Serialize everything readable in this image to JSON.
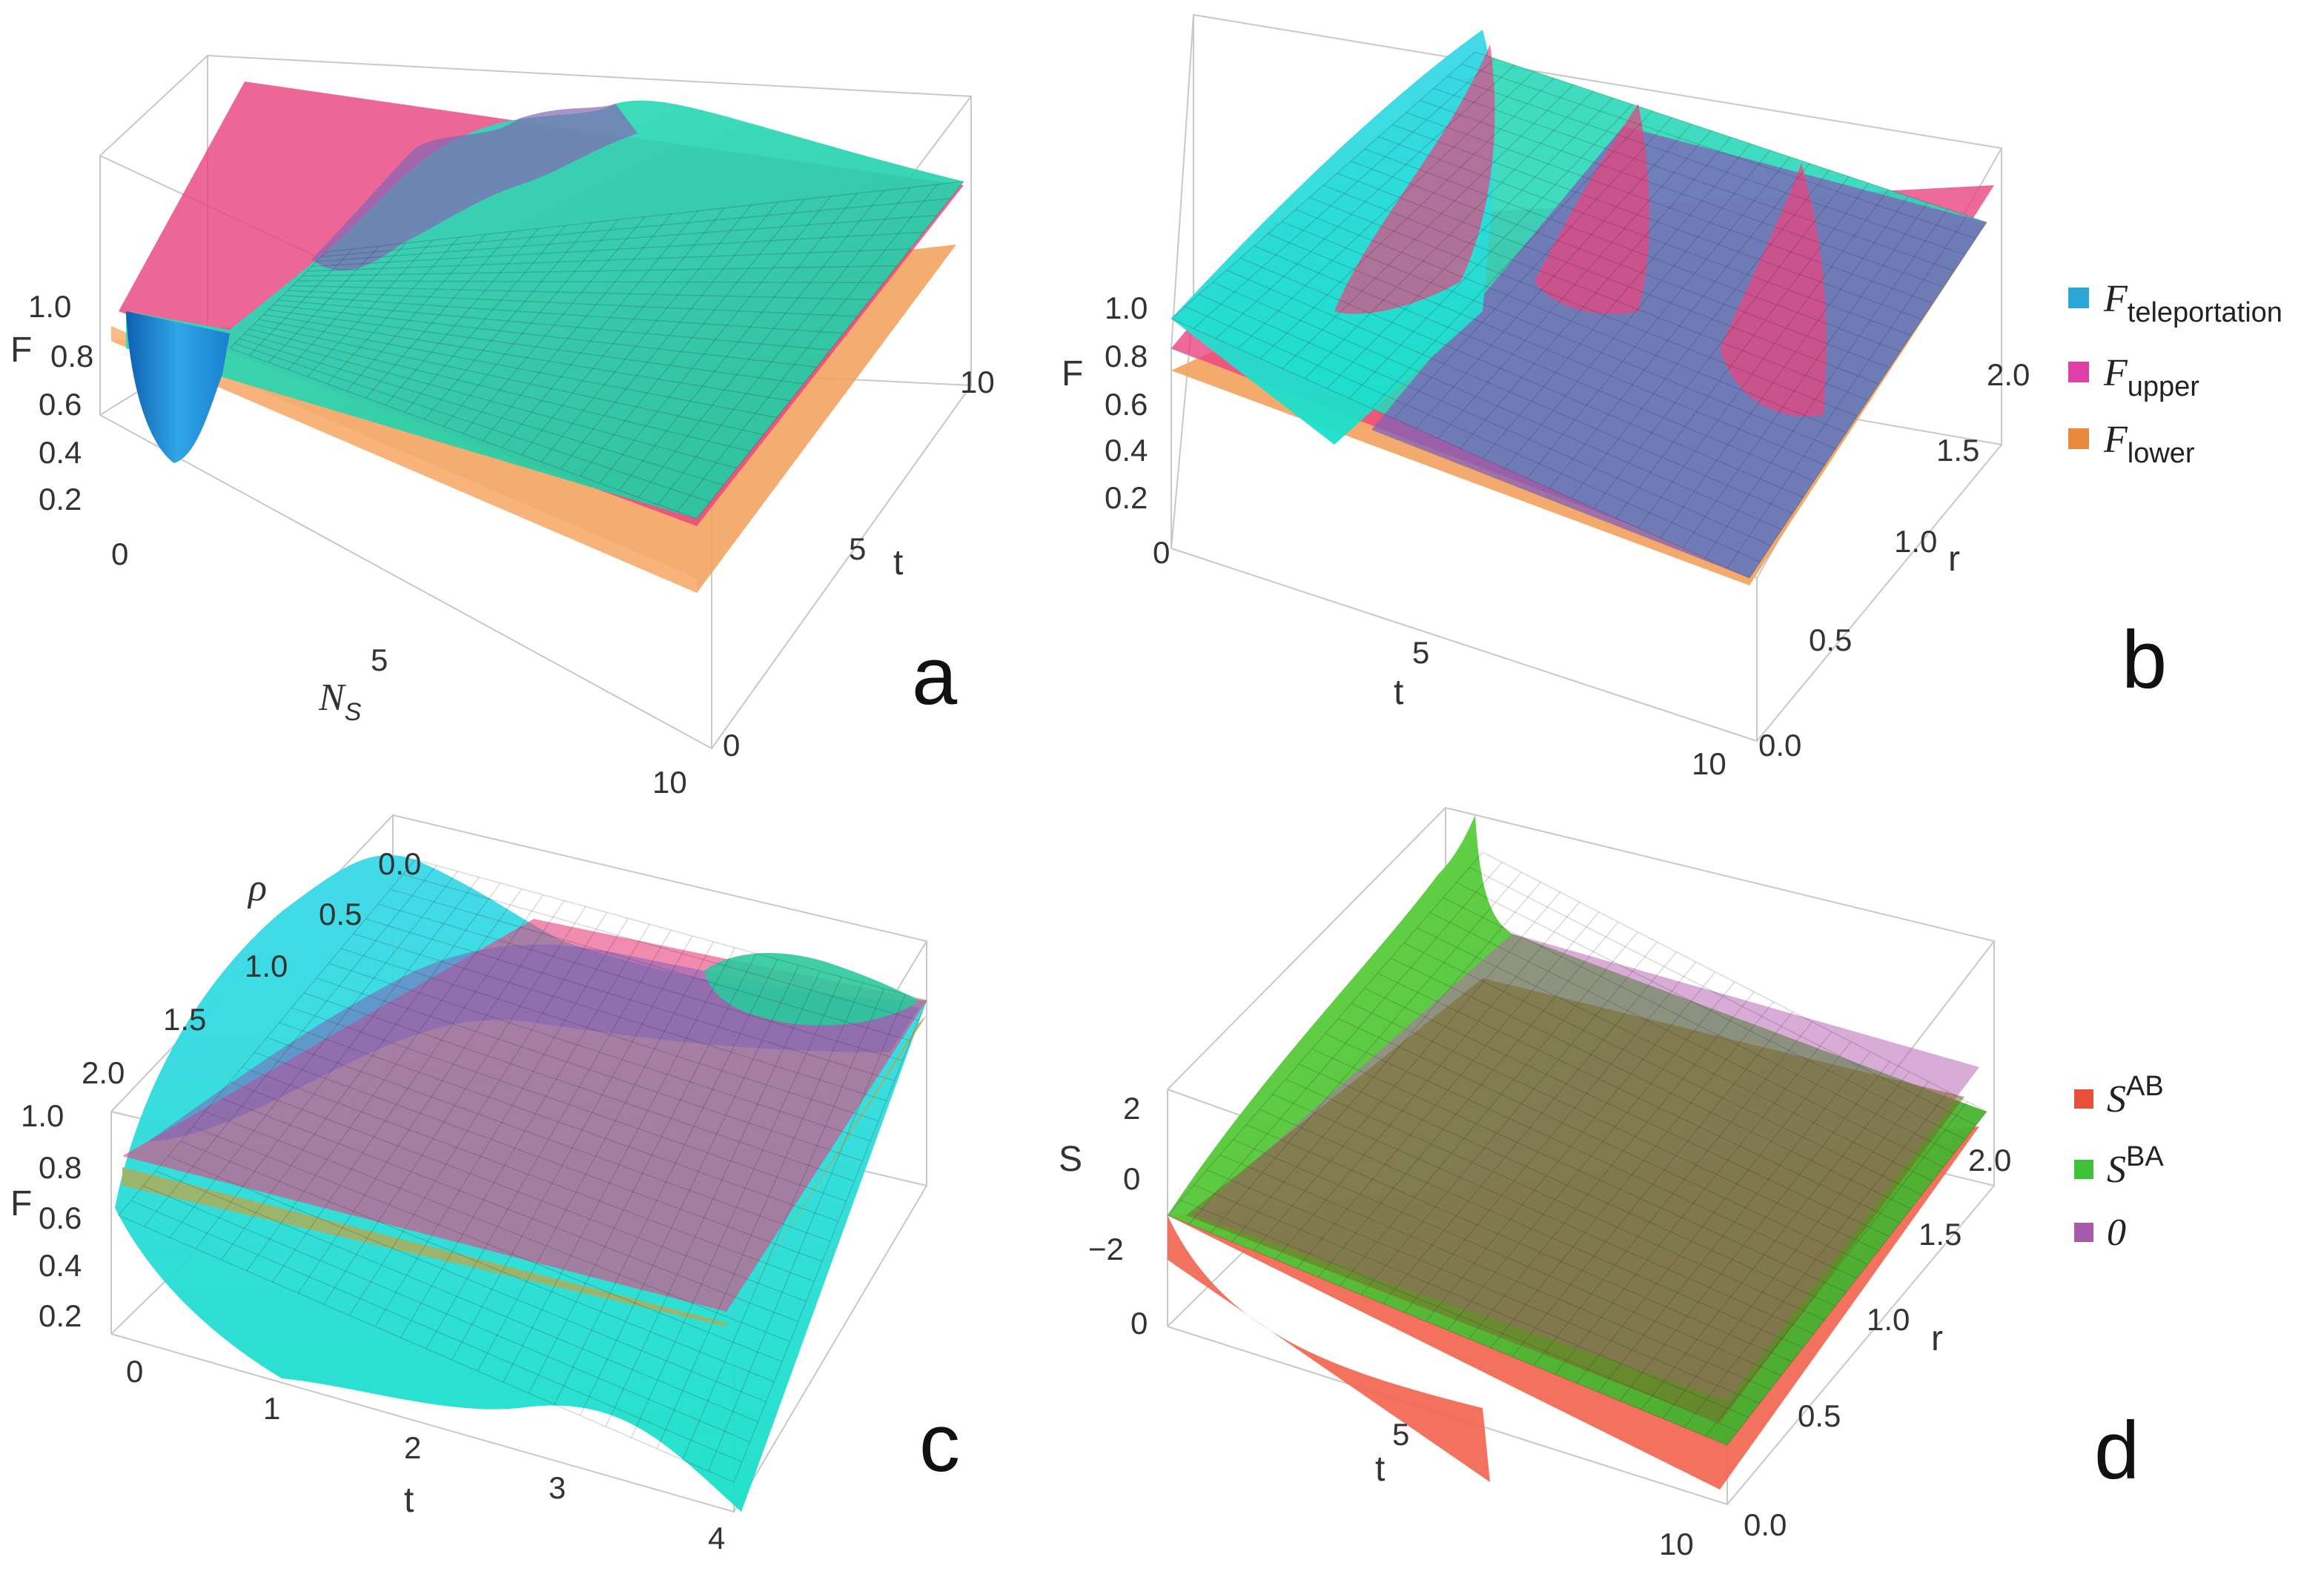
{
  "colors": {
    "teleportation": "#2ad8b8",
    "teleportation_dip": "#1a7fd0",
    "upper": "#e8447f",
    "lower": "#f2a15c",
    "S_AB": "#f26650",
    "S_BA": "#59c93a",
    "zero": "#b868b5"
  },
  "legend_top": {
    "items": [
      {
        "main": "F",
        "sub": "teleportation",
        "color": "#2aa7d8"
      },
      {
        "main": "F",
        "sub": "upper",
        "color": "#e03fa8"
      },
      {
        "main": "F",
        "sub": "lower",
        "color": "#e8893d"
      }
    ]
  },
  "legend_bottom": {
    "items": [
      {
        "main": "S",
        "sup": "AB",
        "color": "#e8503c"
      },
      {
        "main": "S",
        "sup": "BA",
        "color": "#3fc23a"
      },
      {
        "main": "0",
        "sup": "",
        "color": "#a55aaa"
      }
    ]
  },
  "chart_data": [
    {
      "panel": "a",
      "type": "surface3d",
      "zlabel": "F",
      "xlabel_main": "N",
      "xlabel_sub": "S",
      "ylabel": "t",
      "xlim": [
        0,
        10
      ],
      "ylim": [
        0,
        10
      ],
      "zlim": [
        0.1,
        1.0
      ],
      "xticks": [
        "0",
        "5",
        "10"
      ],
      "yticks": [
        "0",
        "5",
        "10"
      ],
      "zticks": [
        "1.0",
        "0.8",
        "0.6",
        "0.4",
        "0.2"
      ],
      "series": [
        {
          "name": "F teleportation",
          "min": 0.2,
          "max": 0.92
        },
        {
          "name": "F upper",
          "value_range": [
            0.75,
            0.9
          ]
        },
        {
          "name": "F lower",
          "value_range": [
            0.6,
            0.75
          ]
        }
      ]
    },
    {
      "panel": "b",
      "type": "surface3d",
      "zlabel": "F",
      "xlabel": "t",
      "ylabel": "r",
      "xlim": [
        0,
        10
      ],
      "ylim": [
        0.0,
        2.0
      ],
      "zlim": [
        0.1,
        1.0
      ],
      "xticks": [
        "0",
        "5",
        "10"
      ],
      "yticks": [
        "0.0",
        "0.5",
        "1.0",
        "1.5",
        "2.0"
      ],
      "zticks": [
        "1.0",
        "0.8",
        "0.6",
        "0.4",
        "0.2"
      ],
      "series": [
        {
          "name": "F teleportation",
          "value_range": [
            0.6,
            1.0
          ]
        },
        {
          "name": "F upper",
          "value_range": [
            0.8,
            0.9
          ]
        },
        {
          "name": "F lower",
          "value_range": [
            0.7,
            0.8
          ]
        }
      ]
    },
    {
      "panel": "c",
      "type": "surface3d",
      "zlabel": "F",
      "xlabel": "t",
      "ylabel": "ρ",
      "xlim": [
        0,
        4
      ],
      "ylim": [
        0.0,
        2.0
      ],
      "zlim": [
        0.1,
        1.0
      ],
      "xticks": [
        "0",
        "1",
        "2",
        "3",
        "4"
      ],
      "yticks": [
        "0.0",
        "0.5",
        "1.0",
        "1.5",
        "2.0"
      ],
      "zticks": [
        "1.0",
        "0.8",
        "0.6",
        "0.4",
        "0.2"
      ],
      "series": [
        {
          "name": "F teleportation",
          "value_range": [
            0.2,
            1.0
          ]
        },
        {
          "name": "F upper",
          "value_range": [
            0.8,
            0.8
          ]
        },
        {
          "name": "F lower",
          "value_range": [
            0.75,
            0.75
          ]
        }
      ]
    },
    {
      "panel": "d",
      "type": "surface3d",
      "zlabel": "S",
      "xlabel": "t",
      "ylabel": "r",
      "xlim": [
        0,
        10
      ],
      "ylim": [
        0.0,
        2.0
      ],
      "zlim": [
        -3,
        3
      ],
      "xticks": [
        "0",
        "5",
        "10"
      ],
      "yticks": [
        "0.0",
        "0.5",
        "1.0",
        "1.5",
        "2.0"
      ],
      "zticks": [
        "2",
        "0",
        "−2"
      ],
      "series": [
        {
          "name": "S AB",
          "value_range": [
            -3,
            0
          ]
        },
        {
          "name": "S BA",
          "value_range": [
            0,
            3
          ]
        },
        {
          "name": "0",
          "value_range": [
            0,
            0
          ]
        }
      ]
    }
  ]
}
